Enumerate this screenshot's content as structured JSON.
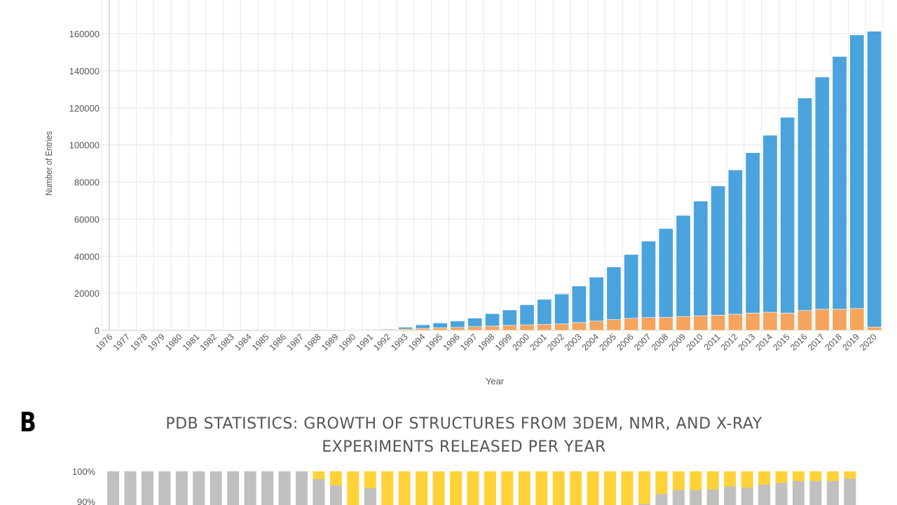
{
  "chart_data": [
    {
      "type": "bar",
      "stacked": true,
      "xlabel": "Year",
      "ylabel": "Number of Entries",
      "ylim": [
        0,
        170000
      ],
      "yticks": [
        0,
        20000,
        40000,
        60000,
        80000,
        100000,
        120000,
        140000,
        160000
      ],
      "grid": true,
      "categories": [
        "1976",
        "1977",
        "1978",
        "1979",
        "1980",
        "1981",
        "1982",
        "1983",
        "1984",
        "1985",
        "1986",
        "1987",
        "1988",
        "1989",
        "1990",
        "1991",
        "1992",
        "1993",
        "1994",
        "1995",
        "1996",
        "1997",
        "1998",
        "1999",
        "2000",
        "2001",
        "2002",
        "2003",
        "2004",
        "2005",
        "2006",
        "2007",
        "2008",
        "2009",
        "2010",
        "2011",
        "2012",
        "2013",
        "2014",
        "2015",
        "2016",
        "2017",
        "2018",
        "2019",
        "2020"
      ],
      "series": [
        {
          "color": "#f5a45d",
          "values": [
            0,
            0,
            0,
            0,
            0,
            0,
            0,
            0,
            0,
            0,
            0,
            0,
            0,
            0,
            200,
            300,
            400,
            700,
            1100,
            1400,
            1600,
            2000,
            2300,
            2700,
            3000,
            3200,
            3500,
            4200,
            5000,
            5800,
            6500,
            6900,
            7000,
            7500,
            7900,
            8200,
            8700,
            9300,
            9800,
            9300,
            10700,
            11400,
            11400,
            11800,
            1800
          ]
        },
        {
          "color": "#4aa3dc",
          "values": [
            0,
            0,
            0,
            0,
            0,
            0,
            0,
            0,
            0,
            0,
            0,
            0,
            0,
            0,
            300,
            300,
            400,
            1000,
            1900,
            2600,
            3400,
            4600,
            6700,
            8300,
            10800,
            13500,
            16100,
            19700,
            23700,
            28400,
            34400,
            41200,
            47900,
            54500,
            61800,
            69700,
            77800,
            86500,
            95400,
            105600,
            114600,
            125200,
            136300,
            147500,
            159500
          ]
        }
      ]
    },
    {
      "type": "bar",
      "stacked": true,
      "percent": true,
      "title": "PDB STATISTICS: GROWTH OF STRUCTURES FROM 3DEM, NMR, AND X-RAY EXPERIMENTS RELEASED PER YEAR",
      "title_line1": "PDB STATISTICS: GROWTH OF STRUCTURES FROM 3DEM, NMR, AND X-RAY",
      "title_line2": "EXPERIMENTS RELEASED PER YEAR",
      "panel_label": "B",
      "ytick_labels": [
        "100%",
        "90%"
      ],
      "bar_count": 44,
      "series": [
        {
          "color": "#ffd338",
          "values": [
            0,
            0,
            0,
            0,
            0,
            0,
            0,
            0,
            0,
            0,
            0,
            0,
            12,
            18,
            100,
            22,
            100,
            100,
            100,
            100,
            100,
            100,
            100,
            100,
            100,
            100,
            100,
            100,
            100,
            100,
            100,
            100,
            100,
            100,
            100,
            100,
            100,
            100,
            100,
            100,
            100,
            100,
            100,
            100
          ]
        },
        {
          "color": "#c0c0c0",
          "values": [
            100,
            100,
            100,
            100,
            100,
            100,
            100,
            100,
            100,
            100,
            100,
            100,
            88,
            82,
            0,
            78,
            0,
            0,
            0,
            0,
            0,
            0,
            0,
            0,
            0,
            0,
            0,
            0,
            0,
            0,
            0,
            0,
            0,
            0,
            0,
            0,
            0,
            0,
            0,
            0,
            0,
            0,
            0,
            0
          ]
        }
      ],
      "grey_top": [
        100,
        100,
        100,
        100,
        100,
        100,
        100,
        100,
        100,
        100,
        100,
        100,
        97.4,
        95.4,
        null,
        94.4,
        null,
        null,
        null,
        null,
        null,
        null,
        null,
        null,
        null,
        null,
        null,
        null,
        null,
        null,
        null,
        89.2,
        92.5,
        93.8,
        93.8,
        94.0,
        95.0,
        94.6,
        95.6,
        96.2,
        96.8,
        96.8,
        96.8,
        97.6
      ]
    }
  ]
}
